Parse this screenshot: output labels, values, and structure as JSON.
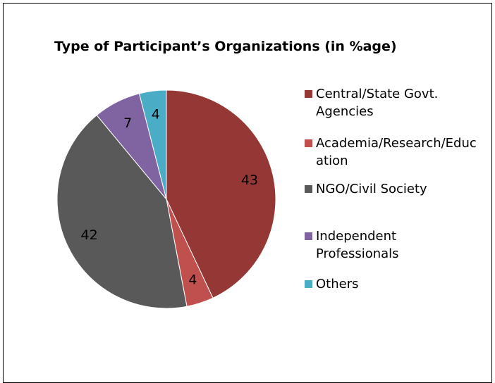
{
  "chart_data": {
    "type": "pie",
    "title": "Type of Participant’s Organizations (in %age)",
    "categories": [
      "Central/State Govt. Agencies",
      "Academia/Research/Education",
      "NGO/Civil Society",
      "Independent Professionals",
      "Others"
    ],
    "values": [
      43,
      4,
      42,
      7,
      4
    ],
    "colors": [
      "#953735",
      "#c0504d",
      "#595959",
      "#8064a2",
      "#4bacc6"
    ],
    "legend": "right"
  }
}
